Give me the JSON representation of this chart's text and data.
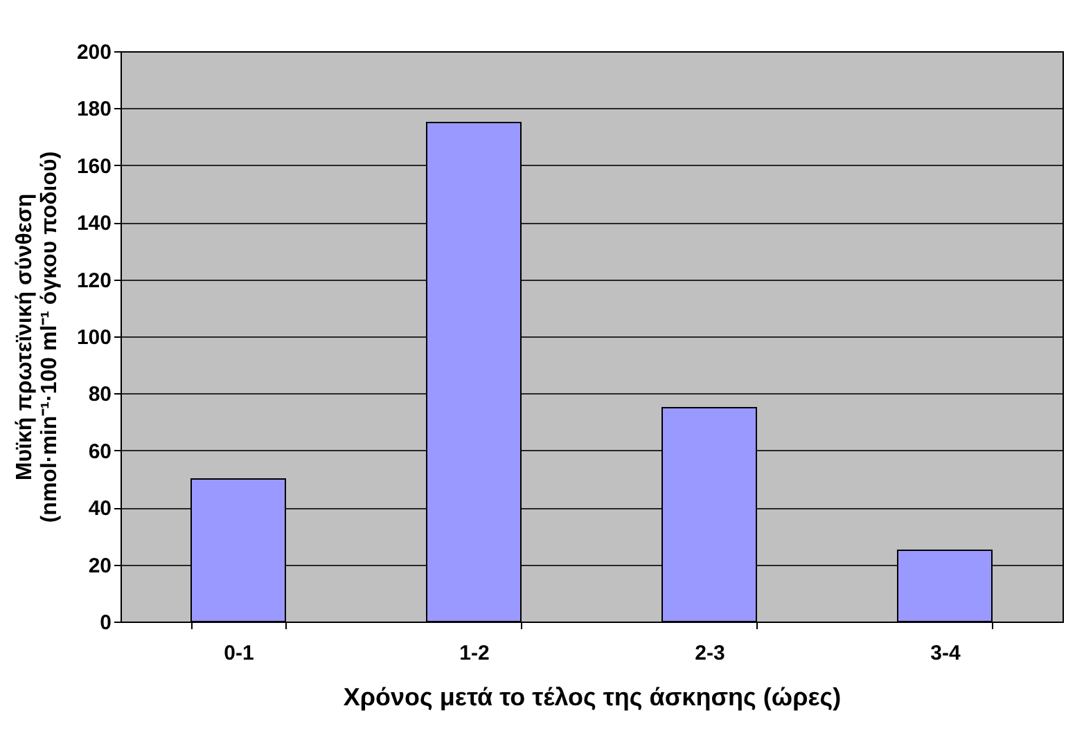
{
  "chart_data": {
    "type": "bar",
    "xlabel": "Χρόνος μετά το τέλος της άσκησης (ώρες)",
    "ylabel": [
      "Μυϊκή πρωτεϊνική σύνθεση",
      "(nmol·min⁻¹·100 ml⁻¹ όγκου ποδιού)"
    ],
    "categories": [
      "0-1",
      "1-2",
      "2-3",
      "3-4"
    ],
    "series": [
      {
        "color": "#9999ff",
        "values": [
          50,
          175,
          75,
          25
        ]
      }
    ],
    "ylim": [
      0,
      200
    ],
    "yticks": [
      0,
      20,
      40,
      60,
      80,
      100,
      120,
      140,
      160,
      180,
      200
    ],
    "grid": "y"
  }
}
